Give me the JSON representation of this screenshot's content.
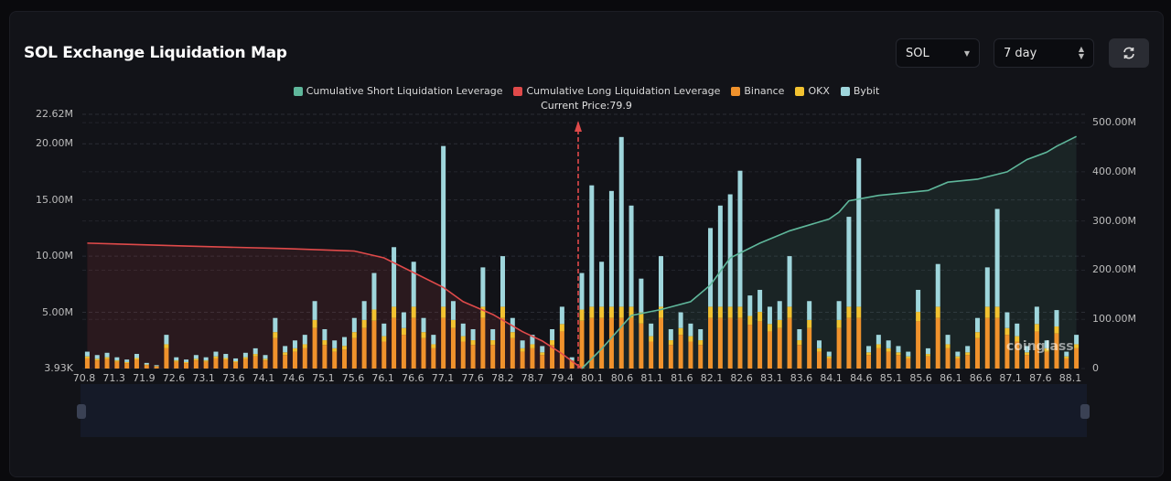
{
  "header": {
    "title": "SOL Exchange Liquidation Map",
    "coin_select": "SOL",
    "period_select": "7 day",
    "refresh_icon": "refresh-icon"
  },
  "colors": {
    "short": "#5fb79b",
    "long": "#e04a4a",
    "binance": "#f0922c",
    "okx": "#f2c230",
    "bybit": "#9fd6dc"
  },
  "chart_data": {
    "type": "bar",
    "title": "SOL Exchange Liquidation Map",
    "current_price_label": "Current Price:79.9",
    "current_price": 79.9,
    "current_bar_index": 50,
    "legend": [
      "Cumulative Short Liquidation Leverage",
      "Cumulative Long Liquidation Leverage",
      "Binance",
      "OKX",
      "Bybit"
    ],
    "y_left": {
      "ticks": [
        "3.93K",
        "5.00M",
        "10.00M",
        "15.00M",
        "20.00M",
        "22.62M"
      ],
      "tick_values": [
        0,
        5,
        10,
        15,
        20,
        22.62
      ],
      "range": [
        0,
        22.62
      ],
      "unit": "M"
    },
    "y_right": {
      "ticks": [
        "0",
        "100.00M",
        "200.00M",
        "300.00M",
        "400.00M",
        "500.00M"
      ],
      "tick_values": [
        0,
        100,
        200,
        300,
        400,
        500
      ],
      "range": [
        0,
        517
      ],
      "unit": "M"
    },
    "x_labels": [
      "70.8",
      "71.3",
      "71.9",
      "72.6",
      "73.1",
      "73.6",
      "74.1",
      "74.6",
      "75.1",
      "75.6",
      "76.1",
      "76.6",
      "77.1",
      "77.6",
      "78.2",
      "78.7",
      "79.4",
      "80.1",
      "80.6",
      "81.1",
      "81.6",
      "82.1",
      "82.6",
      "83.1",
      "83.6",
      "84.1",
      "84.6",
      "85.1",
      "85.6",
      "86.1",
      "86.6",
      "87.1",
      "87.6",
      "88.1"
    ],
    "totals": [
      1.5,
      1.2,
      1.4,
      1.0,
      0.8,
      1.3,
      0.5,
      0.3,
      3.0,
      1.0,
      0.8,
      1.2,
      1.0,
      1.5,
      1.3,
      0.9,
      1.4,
      1.8,
      1.2,
      4.5,
      2.0,
      2.5,
      3.0,
      6.0,
      3.5,
      2.5,
      2.8,
      4.5,
      6.0,
      8.5,
      4.0,
      10.8,
      5.0,
      9.5,
      4.5,
      3.0,
      19.8,
      6.0,
      4.0,
      3.5,
      9.0,
      3.5,
      10.0,
      4.5,
      2.5,
      3.0,
      2.0,
      3.5,
      5.5,
      1.0,
      8.5,
      16.3,
      9.5,
      15.8,
      20.6,
      14.5,
      8.0,
      4.0,
      10.0,
      3.5,
      5.0,
      4.0,
      3.5,
      12.5,
      14.5,
      15.5,
      17.6,
      6.5,
      7.0,
      5.5,
      6.0,
      10.0,
      3.5,
      6.0,
      2.5,
      1.5,
      6.0,
      13.5,
      18.7,
      2.0,
      3.0,
      2.5,
      2.0,
      1.5,
      7.0,
      1.8,
      9.3,
      3.0,
      1.5,
      2.0,
      4.5,
      9.0,
      14.2,
      5.0,
      4.0,
      2.0,
      5.5,
      2.5,
      5.2,
      1.5,
      3.0
    ],
    "binance_share_note": "",
    "series": [
      {
        "name": "Binance",
        "share_small": 0.6,
        "spike_value": 4.5
      },
      {
        "name": "OKX",
        "share_small": 0.12,
        "spike_value": 1.0
      },
      {
        "name": "Bybit",
        "share_small": 0.28
      }
    ],
    "cumulative_long": [
      [
        0,
        255
      ],
      [
        10,
        249
      ],
      [
        20,
        244
      ],
      [
        27,
        239
      ],
      [
        30,
        225
      ],
      [
        33,
        195
      ],
      [
        36,
        165
      ],
      [
        38,
        136
      ],
      [
        41,
        110
      ],
      [
        44,
        75
      ],
      [
        46,
        56
      ],
      [
        48,
        30
      ],
      [
        49,
        15
      ],
      [
        50,
        0
      ]
    ],
    "cumulative_short": [
      [
        50,
        0
      ],
      [
        52,
        40
      ],
      [
        55,
        108
      ],
      [
        58,
        120
      ],
      [
        61,
        136
      ],
      [
        63,
        170
      ],
      [
        65,
        225
      ],
      [
        68,
        255
      ],
      [
        71,
        280
      ],
      [
        75,
        304
      ],
      [
        76,
        318
      ],
      [
        77,
        341
      ],
      [
        80,
        352
      ],
      [
        85,
        362
      ],
      [
        87,
        379
      ],
      [
        90,
        385
      ],
      [
        93,
        400
      ],
      [
        95,
        425
      ],
      [
        97,
        440
      ],
      [
        98,
        452
      ],
      [
        100,
        472
      ]
    ]
  }
}
